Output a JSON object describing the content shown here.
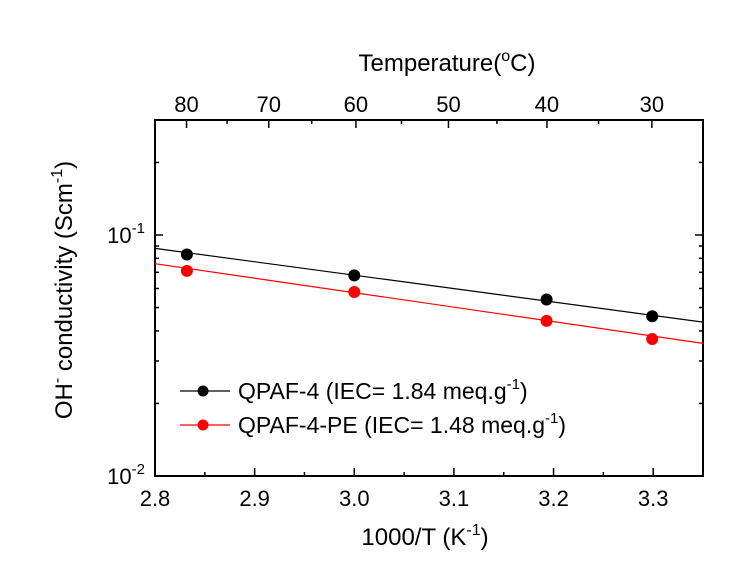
{
  "chart_data": {
    "type": "scatter",
    "xlabel_main": "1000/T (K",
    "xlabel_sup": "-1",
    "xlabel_end": ")",
    "ylabel_pre": "OH",
    "ylabel_sup1": "-",
    "ylabel_mid": " conductivity (Scm",
    "ylabel_sup2": "-1",
    "ylabel_end": ")",
    "top_axis_label_pre": "Temperature(",
    "top_axis_label_sup": "o",
    "top_axis_label_end": "C)",
    "xlim": [
      2.8,
      3.35
    ],
    "ylim": [
      0.01,
      0.3
    ],
    "y_scale": "log",
    "x_ticks": [
      "2.8",
      "2.9",
      "3.0",
      "3.1",
      "3.2",
      "3.3"
    ],
    "y_tick_labels": [
      {
        "base": "10",
        "exp": "-1"
      },
      {
        "base": "10",
        "exp": "-2"
      }
    ],
    "top_ticks": [
      "80",
      "70",
      "60",
      "50",
      "40",
      "30"
    ],
    "legend_position": "bottom-left",
    "series": [
      {
        "name": "QPAF-4 (IEC= 1.84 meq.g",
        "name_sup": "-1",
        "name_end": ")",
        "color": "#000000",
        "x": [
          2.832,
          3.0,
          3.193,
          3.299
        ],
        "y": [
          0.083,
          0.068,
          0.054,
          0.046
        ],
        "fit": [
          [
            2.8,
            0.088
          ],
          [
            3.35,
            0.0435
          ]
        ]
      },
      {
        "name": "QPAF-4-PE (IEC= 1.48 meq.g",
        "name_sup": "-1",
        "name_end": ")",
        "color": "#ff0000",
        "x": [
          2.832,
          3.0,
          3.193,
          3.299
        ],
        "y": [
          0.071,
          0.058,
          0.044,
          0.037
        ],
        "fit": [
          [
            2.8,
            0.076
          ],
          [
            3.35,
            0.0355
          ]
        ]
      }
    ]
  }
}
